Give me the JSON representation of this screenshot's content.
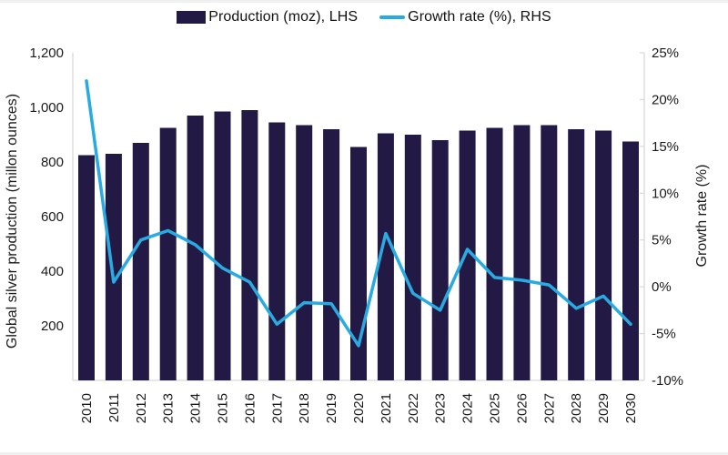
{
  "chart_data": {
    "type": "bar",
    "combo": "bar+line",
    "title": "",
    "categories": [
      "2010",
      "2011",
      "2012",
      "2013",
      "2014",
      "2015",
      "2016",
      "2017",
      "2018",
      "2019",
      "2020",
      "2021",
      "2022",
      "2023",
      "2024",
      "2025",
      "2026",
      "2027",
      "2028",
      "2029",
      "2030"
    ],
    "series": [
      {
        "name": "Production (moz), LHS",
        "type": "bar",
        "axis": "left",
        "color": "#221a45",
        "values": [
          825,
          830,
          870,
          925,
          970,
          985,
          990,
          945,
          935,
          920,
          855,
          905,
          900,
          880,
          915,
          925,
          935,
          935,
          920,
          915,
          875
        ]
      },
      {
        "name": "Growth rate (%), RHS",
        "type": "line",
        "axis": "right",
        "color": "#29abe2",
        "values": [
          22,
          0.5,
          5,
          6,
          4.5,
          2,
          0.5,
          -4,
          -1.7,
          -1.8,
          -6.3,
          5.7,
          -0.7,
          -2.5,
          4,
          1,
          0.7,
          0.2,
          -2.3,
          -1,
          -4
        ]
      }
    ],
    "left_axis": {
      "label": "Global silver production (millon ounces)",
      "min": 0,
      "max": 1200,
      "ticks": [
        200,
        400,
        600,
        800,
        1000,
        1200
      ],
      "tick_labels": [
        "200",
        "400",
        "600",
        "800",
        "1,000",
        "1,200"
      ]
    },
    "right_axis": {
      "label": "Growth rate (%)",
      "min": -10,
      "max": 25,
      "ticks": [
        -10,
        -5,
        0,
        5,
        10,
        15,
        20,
        25
      ],
      "tick_labels": [
        "-10%",
        "-5%",
        "0%",
        "5%",
        "10%",
        "15%",
        "20%",
        "25%"
      ]
    },
    "legend_position": "top",
    "grid": "off",
    "axis_line_color": "#d9d9d9"
  }
}
